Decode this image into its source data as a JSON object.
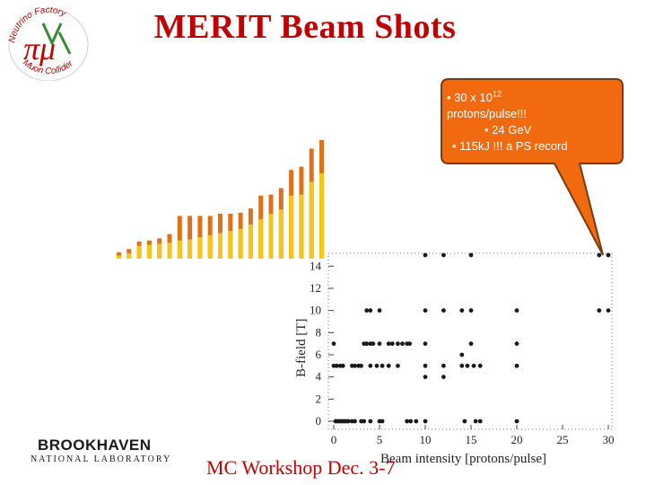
{
  "slide": {
    "title": "MERIT Beam Shots",
    "footer": "MC Workshop Dec. 3-7"
  },
  "logo": {
    "ring_top_text": "Neutrino Factory",
    "ring_bottom_text": "Muon Collider",
    "center_text": "πμ",
    "icon": "nufact-muon-collider-logo"
  },
  "institution": {
    "name": "BROOKHAVEN",
    "subtitle": "NATIONAL LABORATORY"
  },
  "callout": {
    "line1_prefix": "• 30 x 10",
    "line1_exp": "12",
    "line2": "protons/pulse!!!",
    "line3": "• 24 GeV",
    "line4": "• 115kJ !!! a PS record",
    "fill_color": "#f26a10",
    "border_color": "#7a3a10"
  },
  "colors": {
    "title": "#c00000",
    "bar_dark": "#e0701a",
    "bar_light": "#f5c518",
    "points": "#1a1a1a"
  },
  "chart_data": [
    {
      "type": "bar",
      "note_series": [
        "dark-orange upper segment",
        "yellow lower segment"
      ],
      "values_top": [
        0.6,
        0.9,
        1.6,
        1.7,
        1.9,
        2.3,
        4.0,
        4.0,
        4.0,
        4.0,
        4.2,
        4.2,
        4.3,
        4.7,
        5.9,
        6.0,
        6.6,
        8.3,
        8.6,
        10.3,
        11.1
      ],
      "values_bottom": [
        0.3,
        0.5,
        1.2,
        1.3,
        1.4,
        1.5,
        1.7,
        1.8,
        2.0,
        2.2,
        2.4,
        2.6,
        2.8,
        3.2,
        3.7,
        4.2,
        4.6,
        5.9,
        6.0,
        7.2,
        8.0
      ]
    },
    {
      "type": "scatter",
      "xlabel": "Beam intensity [protons/pulse]",
      "ylabel": "B-field [T]",
      "xlim": [
        0,
        31
      ],
      "ylim": [
        -0.5,
        15
      ],
      "xticks": [
        0,
        5,
        10,
        15,
        20,
        25,
        30
      ],
      "yticks": [
        0,
        2,
        4,
        6,
        8,
        10,
        12,
        14
      ],
      "points": [
        [
          0.2,
          0
        ],
        [
          0.4,
          0
        ],
        [
          0.6,
          0
        ],
        [
          0.8,
          0
        ],
        [
          1.0,
          0
        ],
        [
          1.2,
          0
        ],
        [
          1.4,
          0
        ],
        [
          1.6,
          0
        ],
        [
          2.0,
          0
        ],
        [
          2.3,
          0
        ],
        [
          3.0,
          0
        ],
        [
          3.3,
          0
        ],
        [
          4.0,
          0
        ],
        [
          5.0,
          0
        ],
        [
          5.3,
          0
        ],
        [
          8.0,
          0
        ],
        [
          8.4,
          0
        ],
        [
          9.0,
          0
        ],
        [
          10.0,
          0
        ],
        [
          14.3,
          0
        ],
        [
          15.5,
          0
        ],
        [
          16.0,
          0
        ],
        [
          20.0,
          0
        ],
        [
          0.0,
          5
        ],
        [
          0.3,
          5
        ],
        [
          0.7,
          5
        ],
        [
          1.0,
          5
        ],
        [
          2.0,
          5
        ],
        [
          2.3,
          5
        ],
        [
          2.7,
          5
        ],
        [
          3.0,
          5
        ],
        [
          4.0,
          5
        ],
        [
          4.7,
          5
        ],
        [
          5.3,
          5
        ],
        [
          6.0,
          5
        ],
        [
          7.0,
          5
        ],
        [
          10.0,
          5
        ],
        [
          12.0,
          5
        ],
        [
          14.0,
          5
        ],
        [
          14.6,
          5
        ],
        [
          15.3,
          5
        ],
        [
          16.0,
          5
        ],
        [
          20.0,
          5
        ],
        [
          10.0,
          4
        ],
        [
          12.0,
          4
        ],
        [
          14.0,
          6
        ],
        [
          0.0,
          7
        ],
        [
          3.3,
          7
        ],
        [
          3.6,
          7
        ],
        [
          4.0,
          7
        ],
        [
          4.3,
          7
        ],
        [
          5.0,
          7
        ],
        [
          6.0,
          7
        ],
        [
          6.4,
          7
        ],
        [
          7.0,
          7
        ],
        [
          7.5,
          7
        ],
        [
          8.0,
          7
        ],
        [
          8.3,
          7
        ],
        [
          10.0,
          7
        ],
        [
          15.0,
          7
        ],
        [
          20.0,
          7
        ],
        [
          3.6,
          10
        ],
        [
          4.0,
          10
        ],
        [
          5.0,
          10
        ],
        [
          10.0,
          10
        ],
        [
          12.0,
          10
        ],
        [
          14.0,
          10
        ],
        [
          15.0,
          10
        ],
        [
          20.0,
          10
        ],
        [
          29.0,
          10
        ],
        [
          30.0,
          10
        ],
        [
          10.0,
          15
        ],
        [
          12.0,
          15
        ],
        [
          15.0,
          15
        ],
        [
          29.0,
          15
        ],
        [
          30.0,
          15
        ]
      ]
    }
  ]
}
